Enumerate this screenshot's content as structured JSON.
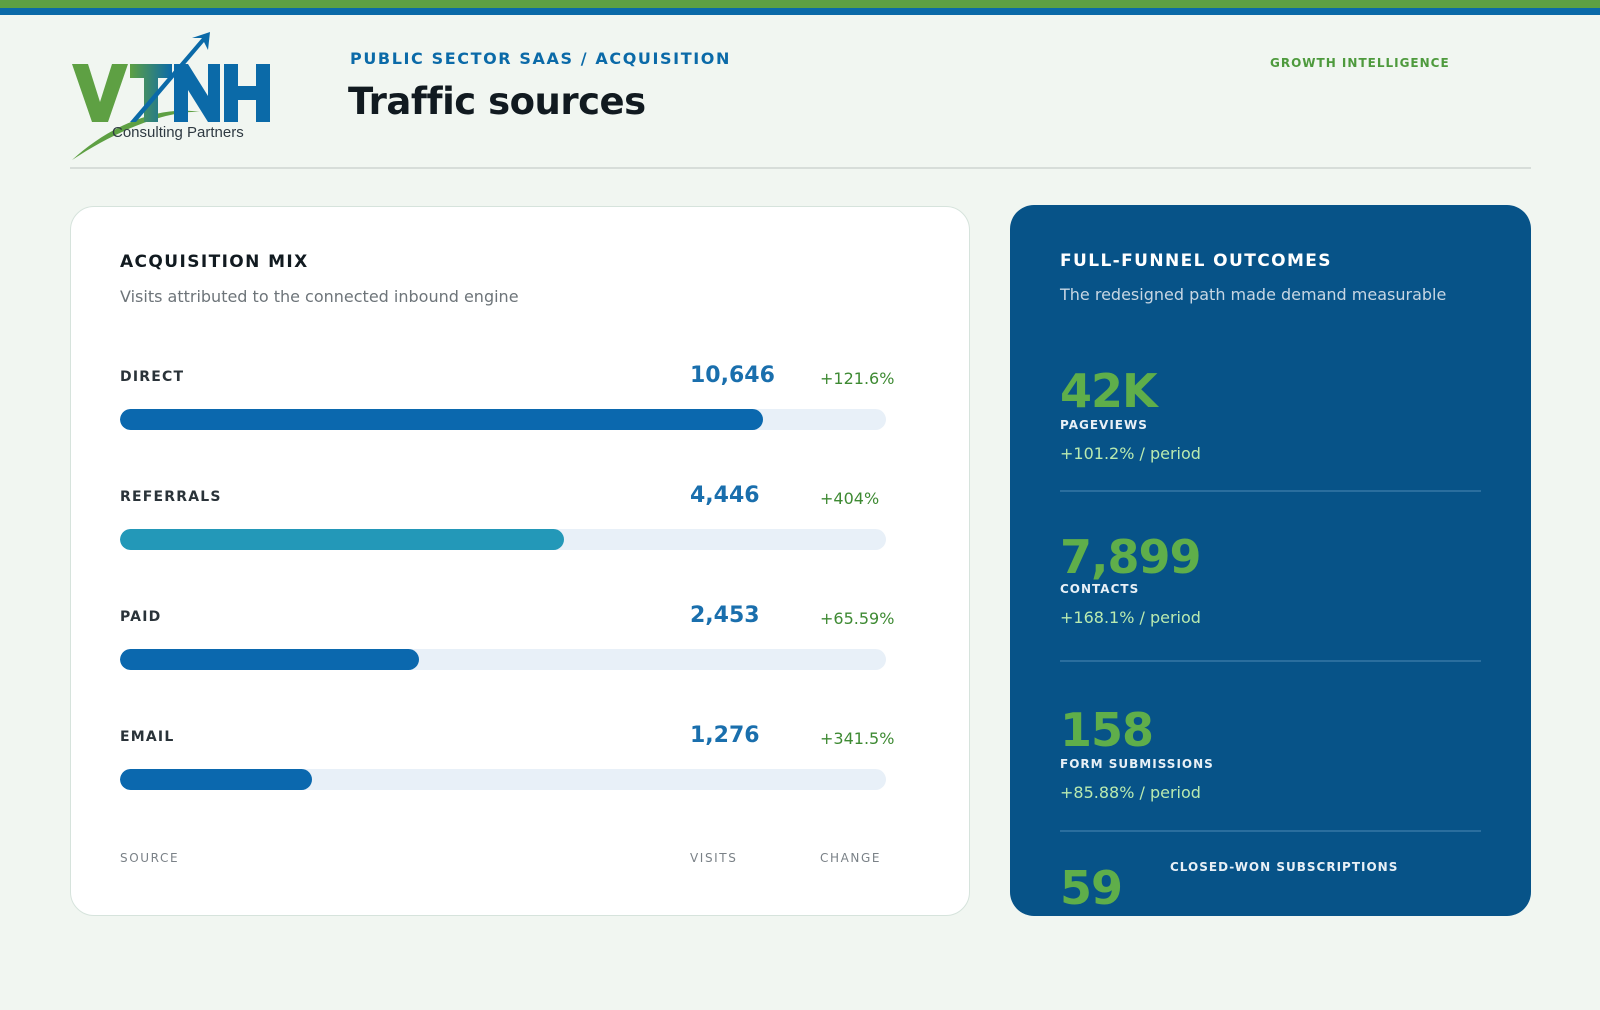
{
  "header": {
    "kicker": "PUBLIC SECTOR SAAS / ACQUISITION",
    "title": "Traffic sources",
    "brand_tag": "GROWTH INTELLIGENCE"
  },
  "logo": {
    "wordmark": "VTNH",
    "subtitle": "Consulting Partners"
  },
  "colors": {
    "brand_green": "#5ea043",
    "brand_blue": "#0b6aa8",
    "panel_blue": "#075388",
    "bar_blue": "#0b68ae",
    "bar_teal": "#2398b8",
    "bar_track": "#e8f0f8"
  },
  "acquisition_mix": {
    "title": "ACQUISITION MIX",
    "subtitle": "Visits attributed to the connected inbound engine",
    "rows": [
      {
        "label": "DIRECT",
        "value": "10,646",
        "visits": 10646,
        "change": "+121.6%",
        "fill_fraction": 0.84,
        "color": "#0b68ae"
      },
      {
        "label": "REFERRALS",
        "value": "4,446",
        "visits": 4446,
        "change": "+404%",
        "fill_fraction": 0.58,
        "color": "#2398b8"
      },
      {
        "label": "PAID",
        "value": "2,453",
        "visits": 2453,
        "change": "+65.59%",
        "fill_fraction": 0.39,
        "color": "#0b68ae"
      },
      {
        "label": "EMAIL",
        "value": "1,276",
        "visits": 1276,
        "change": "+341.5%",
        "fill_fraction": 0.25,
        "color": "#0b68ae"
      }
    ],
    "footer": {
      "source": "SOURCE",
      "visits": "VISITS",
      "change": "CHANGE"
    }
  },
  "funnel": {
    "title": "FULL-FUNNEL OUTCOMES",
    "subtitle": "The redesigned path made demand measurable",
    "metrics": [
      {
        "value": "42K",
        "label": "PAGEVIEWS",
        "change": "+101.2% / period"
      },
      {
        "value": "7,899",
        "label": "CONTACTS",
        "change": "+168.1% / period"
      },
      {
        "value": "158",
        "label": "FORM SUBMISSIONS",
        "change": "+85.88% / period"
      },
      {
        "value": "59",
        "label": "CLOSED-WON SUBSCRIPTIONS"
      }
    ]
  }
}
